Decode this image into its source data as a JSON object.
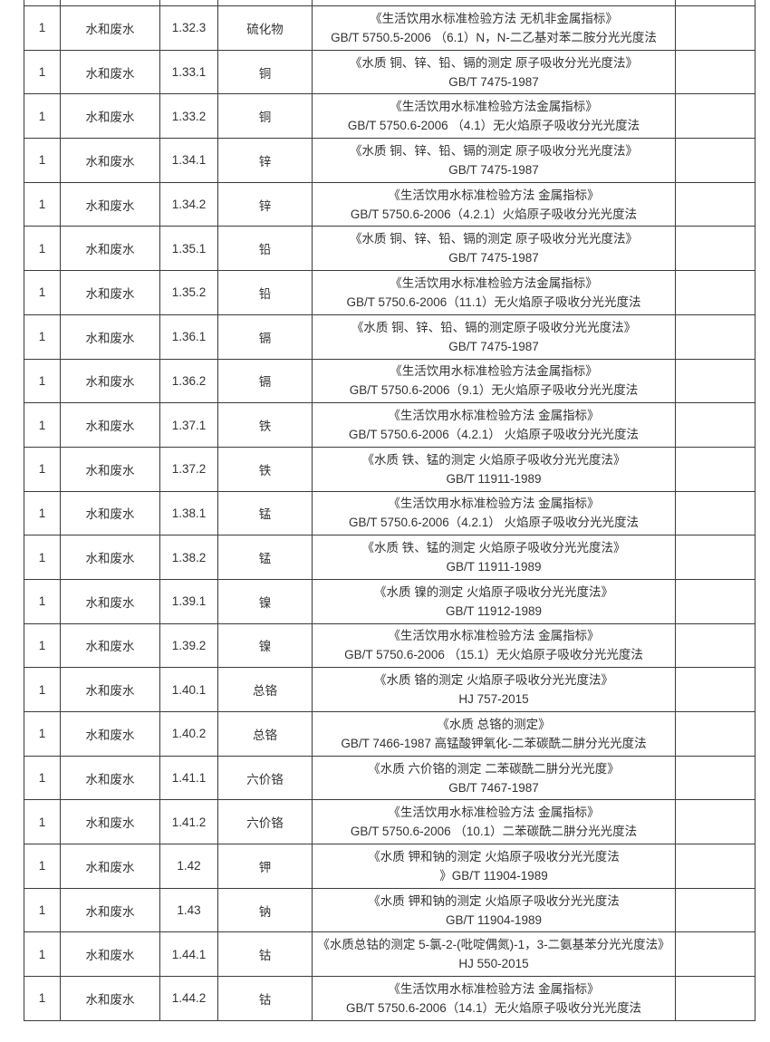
{
  "page": {
    "background_color": "#ffffff",
    "border_color": "#3b3b3b",
    "text_color": "#333333"
  },
  "table": {
    "rows": [
      {
        "no": "1",
        "category": "水和废水",
        "code": "1.32.3",
        "item": "硫化物",
        "method_line1": "《生活饮用水标准检验方法 无机非金属指标》",
        "method_line2": "GB/T 5750.5-2006 （6.1）N，N-二乙基对苯二胺分光光度法",
        "note": ""
      },
      {
        "no": "1",
        "category": "水和废水",
        "code": "1.33.1",
        "item": "铜",
        "method_line1": "《水质 铜、锌、铅、镉的测定 原子吸收分光光度法》",
        "method_line2": "GB/T 7475-1987",
        "note": ""
      },
      {
        "no": "1",
        "category": "水和废水",
        "code": "1.33.2",
        "item": "铜",
        "method_line1": "《生活饮用水标准检验方法金属指标》",
        "method_line2": "GB/T 5750.6-2006 （4.1）无火焰原子吸收分光光度法",
        "note": ""
      },
      {
        "no": "1",
        "category": "水和废水",
        "code": "1.34.1",
        "item": "锌",
        "method_line1": "《水质 铜、锌、铅、镉的测定 原子吸收分光光度法》",
        "method_line2": "GB/T 7475-1987",
        "note": ""
      },
      {
        "no": "1",
        "category": "水和废水",
        "code": "1.34.2",
        "item": "锌",
        "method_line1": "《生活饮用水标准检验方法 金属指标》",
        "method_line2": "GB/T 5750.6-2006（4.2.1）火焰原子吸收分光光度法",
        "note": ""
      },
      {
        "no": "1",
        "category": "水和废水",
        "code": "1.35.1",
        "item": "铅",
        "method_line1": "《水质 铜、锌、铅、镉的测定 原子吸收分光光度法》",
        "method_line2": "GB/T 7475-1987",
        "note": ""
      },
      {
        "no": "1",
        "category": "水和废水",
        "code": "1.35.2",
        "item": "铅",
        "method_line1": "《生活饮用水标准检验方法金属指标》",
        "method_line2": "GB/T 5750.6-2006（11.1）无火焰原子吸收分光光度法",
        "note": ""
      },
      {
        "no": "1",
        "category": "水和废水",
        "code": "1.36.1",
        "item": "镉",
        "method_line1": "《水质 铜、锌、铅、镉的测定原子吸收分光光度法》",
        "method_line2": "GB/T 7475-1987",
        "note": ""
      },
      {
        "no": "1",
        "category": "水和废水",
        "code": "1.36.2",
        "item": "镉",
        "method_line1": "《生活饮用水标准检验方法金属指标》",
        "method_line2": "GB/T 5750.6-2006（9.1）无火焰原子吸收分光光度法",
        "note": ""
      },
      {
        "no": "1",
        "category": "水和废水",
        "code": "1.37.1",
        "item": "铁",
        "method_line1": "《生活饮用水标准检验方法 金属指标》",
        "method_line2": "GB/T 5750.6-2006（4.2.1） 火焰原子吸收分光光度法",
        "note": ""
      },
      {
        "no": "1",
        "category": "水和废水",
        "code": "1.37.2",
        "item": "铁",
        "method_line1": "《水质 铁、锰的测定 火焰原子吸收分光光度法》",
        "method_line2": "GB/T 11911-1989",
        "note": ""
      },
      {
        "no": "1",
        "category": "水和废水",
        "code": "1.38.1",
        "item": "锰",
        "method_line1": "《生活饮用水标准检验方法 金属指标》",
        "method_line2": "GB/T 5750.6-2006（4.2.1） 火焰原子吸收分光光度法",
        "note": ""
      },
      {
        "no": "1",
        "category": "水和废水",
        "code": "1.38.2",
        "item": "锰",
        "method_line1": "《水质 铁、锰的测定 火焰原子吸收分光光度法》",
        "method_line2": "GB/T 11911-1989",
        "note": ""
      },
      {
        "no": "1",
        "category": "水和废水",
        "code": "1.39.1",
        "item": "镍",
        "method_line1": "《水质 镍的测定 火焰原子吸收分光光度法》",
        "method_line2": "GB/T 11912-1989",
        "note": ""
      },
      {
        "no": "1",
        "category": "水和废水",
        "code": "1.39.2",
        "item": "镍",
        "method_line1": "《生活饮用水标准检验方法 金属指标》",
        "method_line2": "GB/T 5750.6-2006 （15.1）无火焰原子吸收分光光度法",
        "note": ""
      },
      {
        "no": "1",
        "category": "水和废水",
        "code": "1.40.1",
        "item": "总铬",
        "method_line1": "《水质 铬的测定 火焰原子吸收分光光度法》",
        "method_line2": "HJ 757-2015",
        "note": ""
      },
      {
        "no": "1",
        "category": "水和废水",
        "code": "1.40.2",
        "item": "总铬",
        "method_line1": "《水质 总铬的测定》",
        "method_line2": "GB/T 7466-1987  高锰酸钾氧化-二苯碳酰二肼分光光度法",
        "note": ""
      },
      {
        "no": "1",
        "category": "水和废水",
        "code": "1.41.1",
        "item": "六价铬",
        "method_line1": "《水质 六价铬的测定 二苯碳酰二肼分光光度》",
        "method_line2": "GB/T 7467-1987",
        "note": ""
      },
      {
        "no": "1",
        "category": "水和废水",
        "code": "1.41.2",
        "item": "六价铬",
        "method_line1": "《生活饮用水标准检验方法 金属指标》",
        "method_line2": "GB/T 5750.6-2006  （10.1）二苯碳酰二肼分光光度法",
        "note": ""
      },
      {
        "no": "1",
        "category": "水和废水",
        "code": "1.42",
        "item": "钾",
        "method_line1": "《水质 钾和钠的测定 火焰原子吸收分光光度法",
        "method_line2": "》GB/T 11904-1989",
        "note": ""
      },
      {
        "no": "1",
        "category": "水和废水",
        "code": "1.43",
        "item": "钠",
        "method_line1": "《水质 钾和钠的测定 火焰原子吸收分光光度法",
        "method_line2": "GB/T 11904-1989",
        "note": ""
      },
      {
        "no": "1",
        "category": "水和废水",
        "code": "1.44.1",
        "item": "钴",
        "method_line1": "《水质总钴的测定 5-氯-2-(吡啶偶氮)-1，3-二氨基苯分光光度法》",
        "method_line2": "HJ 550-2015",
        "note": ""
      },
      {
        "no": "1",
        "category": "水和废水",
        "code": "1.44.2",
        "item": "钴",
        "method_line1": "《生活饮用水标准检验方法 金属指标》",
        "method_line2": "GB/T 5750.6-2006（14.1）无火焰原子吸收分光光度法",
        "note": ""
      }
    ]
  }
}
